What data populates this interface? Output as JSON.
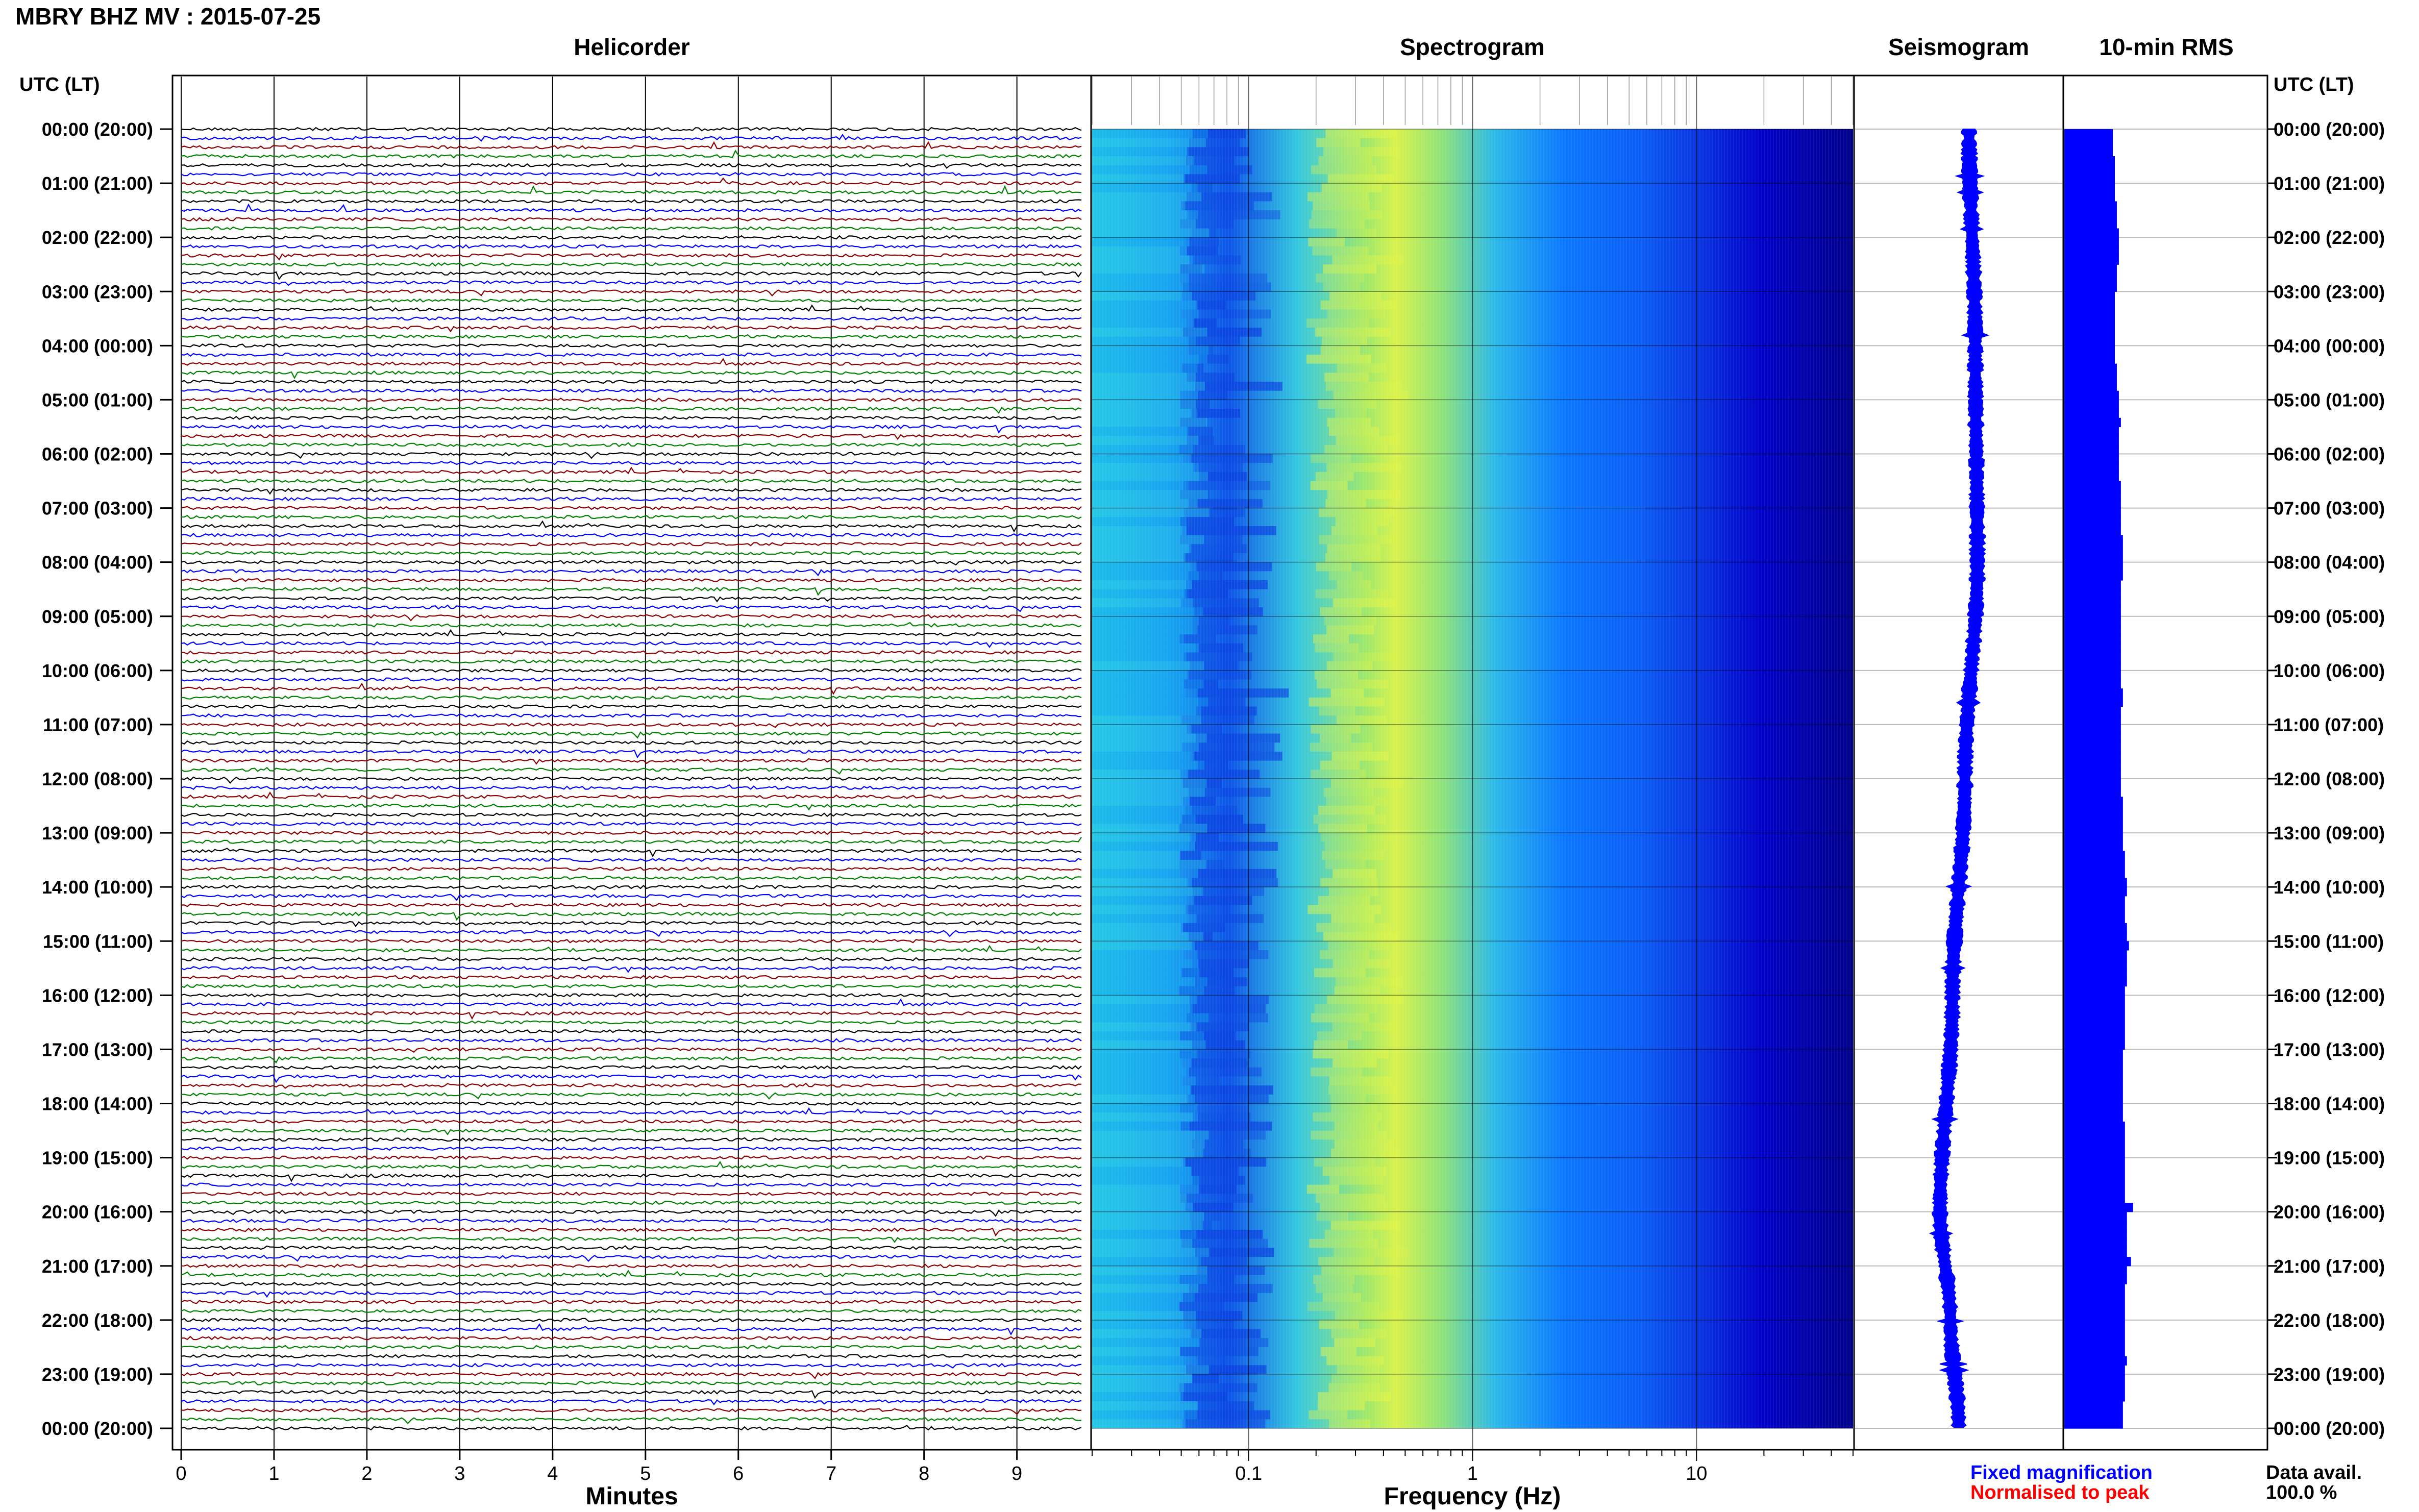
{
  "header": {
    "title": "MBRY BHZ MV : 2015-07-25",
    "left_axis_label": "UTC (LT)",
    "right_axis_label": "UTC (LT)"
  },
  "panels": {
    "helicorder": {
      "title": "Helicorder",
      "xlabel": "Minutes"
    },
    "spectrogram": {
      "title": "Spectrogram",
      "xlabel": "Frequency (Hz)"
    },
    "seismogram": {
      "title": "Seismogram"
    },
    "rms": {
      "title": "10-min RMS"
    }
  },
  "legend": {
    "fixed": "Fixed magnification",
    "normalised": "Normalised to peak",
    "fixed_color": "#0000ff",
    "normalised_color": "#ff0000"
  },
  "data_availability": {
    "label": "Data avail.",
    "value": "100.0 %"
  },
  "chart_data": [
    {
      "type": "line",
      "panel": "helicorder",
      "title": "Helicorder",
      "xlabel": "Minutes",
      "ylabel": "UTC (LT)",
      "xlim": [
        0,
        10
      ],
      "x_ticks": [
        "0",
        "1",
        "2",
        "3",
        "4",
        "5",
        "6",
        "7",
        "8",
        "9"
      ],
      "rows": 144,
      "row_minutes": 10,
      "trace_colors": [
        "#000000",
        "#0000ff",
        "#8b0000",
        "#008000"
      ],
      "time_ticks": [
        "00:00 (20:00)",
        "01:00 (21:00)",
        "02:00 (22:00)",
        "03:00 (23:00)",
        "04:00 (00:00)",
        "05:00 (01:00)",
        "06:00 (02:00)",
        "07:00 (03:00)",
        "08:00 (04:00)",
        "09:00 (05:00)",
        "10:00 (06:00)",
        "11:00 (07:00)",
        "12:00 (08:00)",
        "13:00 (09:00)",
        "14:00 (10:00)",
        "15:00 (11:00)",
        "16:00 (12:00)",
        "17:00 (13:00)",
        "18:00 (14:00)",
        "19:00 (15:00)",
        "20:00 (16:00)",
        "21:00 (17:00)",
        "22:00 (18:00)",
        "23:00 (19:00)",
        "00:00 (20:00)"
      ],
      "grid": true
    },
    {
      "type": "heatmap",
      "panel": "spectrogram",
      "title": "Spectrogram",
      "xlabel": "Frequency (Hz)",
      "x_scale": "log",
      "xlim": [
        0.02,
        50
      ],
      "x_ticks": [
        "0.1",
        "1",
        "10"
      ],
      "peak_frequency_hz": 0.35,
      "colormap": [
        "#00008b",
        "#0000ff",
        "#0a7dff",
        "#22d3e6",
        "#a6ee5a",
        "#f0f542"
      ],
      "grid": true
    },
    {
      "type": "line",
      "panel": "seismogram",
      "title": "Seismogram",
      "description_points": [
        {
          "hour": 0,
          "offset": 0.55
        },
        {
          "hour": 4,
          "offset": 0.58
        },
        {
          "hour": 8,
          "offset": 0.59
        },
        {
          "hour": 12,
          "offset": 0.53
        },
        {
          "hour": 16,
          "offset": 0.47
        },
        {
          "hour": 20,
          "offset": 0.41
        },
        {
          "hour": 22,
          "offset": 0.46
        },
        {
          "hour": 24,
          "offset": 0.5
        }
      ],
      "color": "#0000ff"
    },
    {
      "type": "bar",
      "panel": "rms",
      "title": "10-min RMS",
      "orientation": "horizontal",
      "xlim": [
        0,
        1
      ],
      "values": [
        0.24,
        0.24,
        0.24,
        0.25,
        0.25,
        0.25,
        0.25,
        0.25,
        0.26,
        0.26,
        0.26,
        0.27,
        0.27,
        0.27,
        0.27,
        0.26,
        0.26,
        0.26,
        0.25,
        0.25,
        0.25,
        0.25,
        0.25,
        0.25,
        0.25,
        0.25,
        0.26,
        0.26,
        0.26,
        0.27,
        0.27,
        0.27,
        0.28,
        0.27,
        0.27,
        0.27,
        0.27,
        0.27,
        0.27,
        0.28,
        0.28,
        0.28,
        0.28,
        0.28,
        0.28,
        0.29,
        0.29,
        0.29,
        0.29,
        0.29,
        0.28,
        0.28,
        0.28,
        0.28,
        0.28,
        0.28,
        0.28,
        0.28,
        0.28,
        0.28,
        0.28,
        0.28,
        0.29,
        0.29,
        0.28,
        0.28,
        0.28,
        0.28,
        0.28,
        0.28,
        0.28,
        0.28,
        0.28,
        0.28,
        0.29,
        0.29,
        0.29,
        0.29,
        0.29,
        0.29,
        0.3,
        0.3,
        0.3,
        0.31,
        0.31,
        0.3,
        0.3,
        0.3,
        0.31,
        0.31,
        0.32,
        0.31,
        0.31,
        0.31,
        0.31,
        0.3,
        0.3,
        0.3,
        0.3,
        0.3,
        0.3,
        0.3,
        0.29,
        0.29,
        0.29,
        0.29,
        0.29,
        0.29,
        0.29,
        0.29,
        0.3,
        0.3,
        0.3,
        0.3,
        0.3,
        0.3,
        0.3,
        0.3,
        0.3,
        0.34,
        0.31,
        0.31,
        0.31,
        0.31,
        0.31,
        0.33,
        0.31,
        0.31,
        0.3,
        0.3,
        0.3,
        0.3,
        0.3,
        0.3,
        0.3,
        0.3,
        0.31,
        0.3,
        0.3,
        0.3,
        0.3,
        0.29,
        0.29,
        0.29
      ],
      "color": "#0000ff"
    }
  ]
}
